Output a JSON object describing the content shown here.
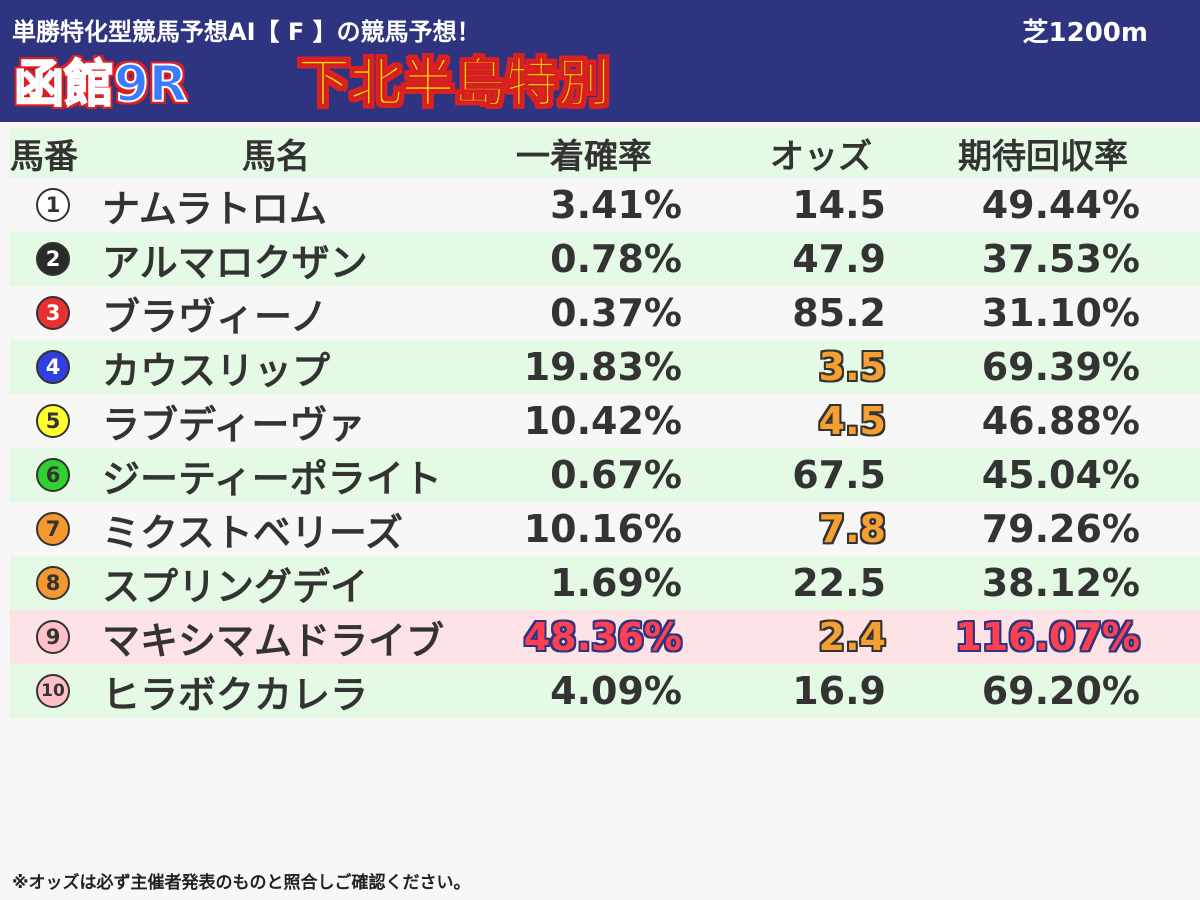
{
  "header": {
    "subtitle": "単勝特化型競馬予想AI【 F 】の競馬予想！",
    "surface": "芝1200m",
    "race_id": "函館9R",
    "race_name": "下北半島特別"
  },
  "table": {
    "columns": [
      "馬番",
      "馬名",
      "一着確率",
      "オッズ",
      "期待回収率"
    ],
    "rows": [
      {
        "num": "1",
        "name": "ナムラトロム",
        "prob": "3.41%",
        "odds": "14.5",
        "ret": "49.44%",
        "odds_hl": false,
        "prob_hl": false,
        "ret_hl": false
      },
      {
        "num": "2",
        "name": "アルマロクザン",
        "prob": "0.78%",
        "odds": "47.9",
        "ret": "37.53%",
        "odds_hl": false,
        "prob_hl": false,
        "ret_hl": false
      },
      {
        "num": "3",
        "name": "ブラヴィーノ",
        "prob": "0.37%",
        "odds": "85.2",
        "ret": "31.10%",
        "odds_hl": false,
        "prob_hl": false,
        "ret_hl": false
      },
      {
        "num": "4",
        "name": "カウスリップ",
        "prob": "19.83%",
        "odds": "3.5",
        "ret": "69.39%",
        "odds_hl": true,
        "prob_hl": false,
        "ret_hl": false
      },
      {
        "num": "5",
        "name": "ラブディーヴァ",
        "prob": "10.42%",
        "odds": "4.5",
        "ret": "46.88%",
        "odds_hl": true,
        "prob_hl": false,
        "ret_hl": false
      },
      {
        "num": "6",
        "name": "ジーティーポライト",
        "prob": "0.67%",
        "odds": "67.5",
        "ret": "45.04%",
        "odds_hl": false,
        "prob_hl": false,
        "ret_hl": false
      },
      {
        "num": "7",
        "name": "ミクストベリーズ",
        "prob": "10.16%",
        "odds": "7.8",
        "ret": "79.26%",
        "odds_hl": true,
        "prob_hl": false,
        "ret_hl": false
      },
      {
        "num": "8",
        "name": "スプリングデイ",
        "prob": "1.69%",
        "odds": "22.5",
        "ret": "38.12%",
        "odds_hl": false,
        "prob_hl": false,
        "ret_hl": false
      },
      {
        "num": "9",
        "name": "マキシマムドライブ",
        "prob": "48.36%",
        "odds": "2.4",
        "ret": "116.07%",
        "odds_hl": true,
        "prob_hl": true,
        "ret_hl": true
      },
      {
        "num": "10",
        "name": "ヒラボクカレラ",
        "prob": "4.09%",
        "odds": "16.9",
        "ret": "69.20%",
        "odds_hl": false,
        "prob_hl": false,
        "ret_hl": false
      }
    ]
  },
  "colors": {
    "badges": [
      {
        "bg": "#ffffff",
        "fg": "#333333"
      },
      {
        "bg": "#2a2a2a",
        "fg": "#ffffff"
      },
      {
        "bg": "#e83030",
        "fg": "#ffffff"
      },
      {
        "bg": "#3040e0",
        "fg": "#ffffff"
      },
      {
        "bg": "#ffff30",
        "fg": "#333333"
      },
      {
        "bg": "#30d030",
        "fg": "#333333"
      },
      {
        "bg": "#f59830",
        "fg": "#333333"
      },
      {
        "bg": "#f59830",
        "fg": "#333333"
      },
      {
        "bg": "#ffc0c8",
        "fg": "#333333"
      },
      {
        "bg": "#ffc0c8",
        "fg": "#333333"
      }
    ],
    "row_highlight": "#fde3e6",
    "header_bg": "#2e3480"
  },
  "footnote": "※オッズは必ず主催者発表のものと照合しご確認ください。"
}
